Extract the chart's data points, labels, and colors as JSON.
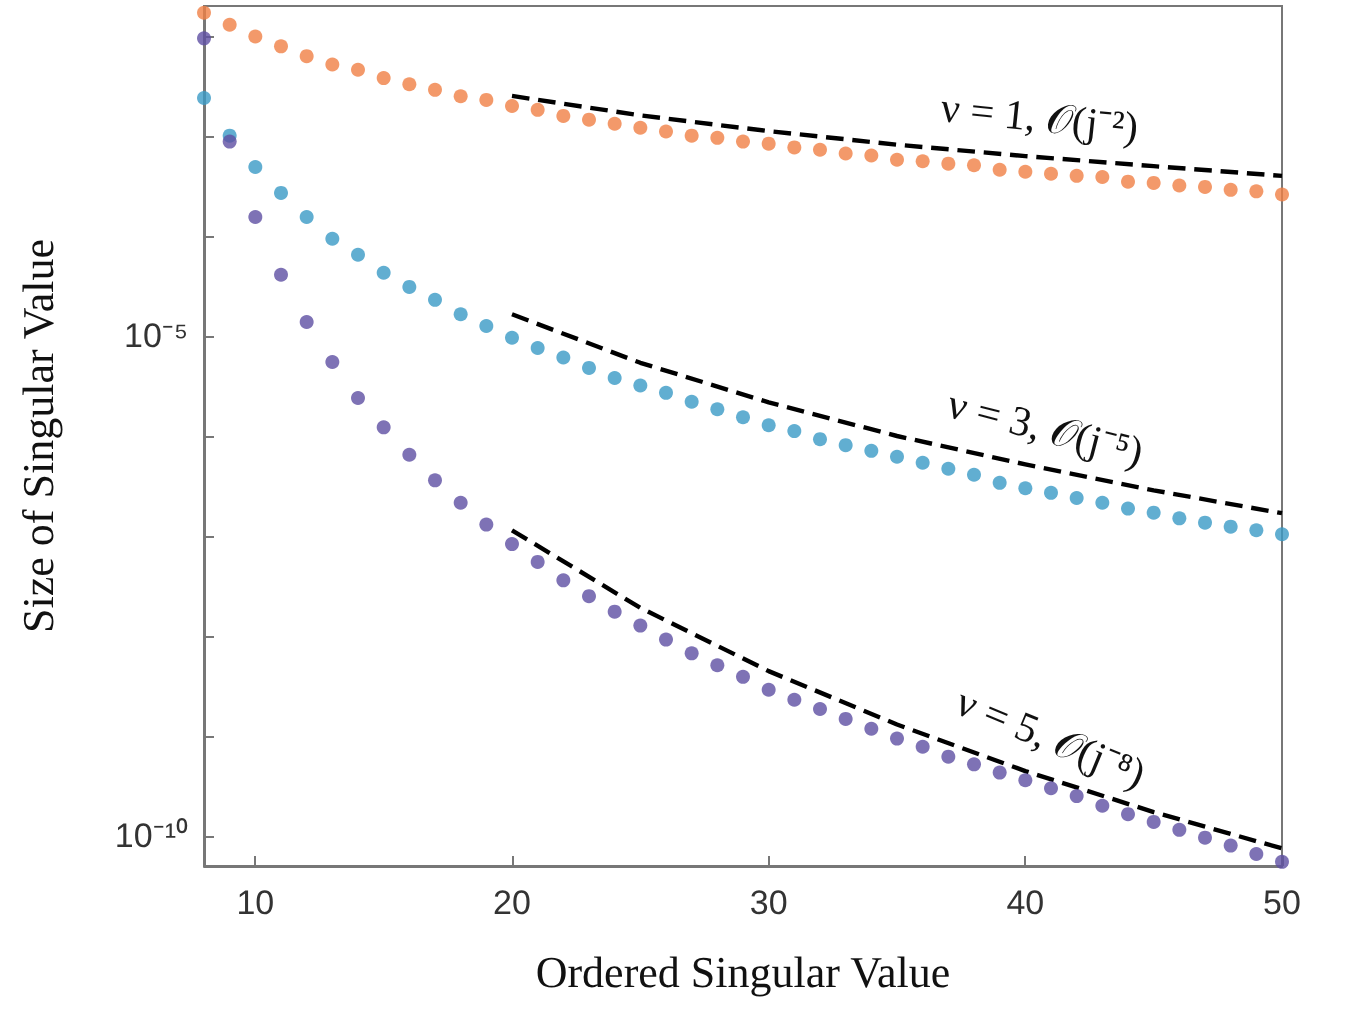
{
  "chart_data": {
    "type": "scatter",
    "xlabel": "Ordered Singular Value",
    "ylabel": "Size of Singular Value",
    "x": [
      8,
      9,
      10,
      11,
      12,
      13,
      14,
      15,
      16,
      17,
      18,
      19,
      20,
      21,
      22,
      23,
      24,
      25,
      26,
      27,
      28,
      29,
      30,
      31,
      32,
      33,
      34,
      35,
      36,
      37,
      38,
      39,
      40,
      41,
      42,
      43,
      44,
      45,
      46,
      47,
      48,
      49,
      50
    ],
    "series": [
      {
        "color": "#f07f45",
        "values": [
          0.0171,
          0.013,
          0.0099,
          0.0079,
          0.0063,
          0.0052,
          0.0046,
          0.0038,
          0.0033,
          0.0029,
          0.0025,
          0.0023,
          0.002,
          0.00183,
          0.00159,
          0.00146,
          0.00133,
          0.00121,
          0.00111,
          0.00101,
          0.00096,
          0.00088,
          0.00084,
          0.00077,
          0.00073,
          0.00067,
          0.00064,
          0.00058,
          0.00056,
          0.00053,
          0.00051,
          0.00046,
          0.00044,
          0.00042,
          0.0004,
          0.00039,
          0.00035,
          0.00034,
          0.00032,
          0.00031,
          0.00029,
          0.00028,
          0.00026
        ]
      },
      {
        "color": "#3a9ac6",
        "values": [
          0.0024,
          0.00101,
          0.00049,
          0.00027,
          0.000155,
          9.4e-05,
          6.5e-05,
          4.3e-05,
          3.1e-05,
          2.3e-05,
          1.65e-05,
          1.26e-05,
          9.6e-06,
          7.6e-06,
          6.1e-06,
          4.8e-06,
          3.8e-06,
          3.2e-06,
          2.7e-06,
          2.2e-06,
          1.85e-06,
          1.54e-06,
          1.28e-06,
          1.12e-06,
          9.3e-07,
          8.1e-07,
          7.1e-07,
          6.2e-07,
          5.4e-07,
          4.7e-07,
          4.1e-07,
          3.4e-07,
          3e-07,
          2.7e-07,
          2.4e-07,
          2.15e-07,
          1.88e-07,
          1.71e-07,
          1.5e-07,
          1.36e-07,
          1.24e-07,
          1.14e-07,
          1.04e-07
        ]
      },
      {
        "color": "#5e4fa2",
        "values": [
          0.0095,
          0.00088,
          0.000155,
          4.1e-05,
          1.38e-05,
          5.5e-06,
          2.4e-06,
          1.22e-06,
          6.5e-07,
          3.6e-07,
          2.15e-07,
          1.3e-07,
          8.3e-08,
          5.5e-08,
          3.6e-08,
          2.5e-08,
          1.75e-08,
          1.27e-08,
          9.2e-09,
          6.7e-09,
          5.1e-09,
          3.9e-09,
          2.9e-09,
          2.3e-09,
          1.86e-09,
          1.48e-09,
          1.18e-09,
          9.4e-10,
          7.8e-10,
          6.2e-10,
          5.2e-10,
          4.3e-10,
          3.6e-10,
          3e-10,
          2.5e-10,
          2e-10,
          1.65e-10,
          1.38e-10,
          1.15e-10,
          9.6e-11,
          8e-11,
          6.6e-11,
          5.5e-11
        ]
      },
      {
        "type": "line",
        "color": "#000000",
        "line_style": "dashed",
        "marker": "none",
        "x": [
          20,
          25,
          30,
          35,
          40,
          45,
          50
        ],
        "values": [
          0.00252,
          0.00161,
          0.00112,
          0.00082,
          0.00063,
          0.0005,
          0.0004
        ]
      },
      {
        "type": "line",
        "color": "#000000",
        "line_style": "dashed",
        "marker": "none",
        "x": [
          20,
          25,
          30,
          35,
          40,
          45,
          50
        ],
        "values": [
          1.65e-05,
          5.4e-06,
          2.17e-06,
          1e-06,
          5.2e-07,
          2.86e-07,
          1.69e-07
        ]
      },
      {
        "type": "line",
        "color": "#000000",
        "line_style": "dashed",
        "marker": "none",
        "x": [
          20,
          25,
          30,
          35,
          40,
          45,
          50
        ],
        "values": [
          1.14e-07,
          1.91e-08,
          4.45e-09,
          1.3e-09,
          4.45e-10,
          1.73e-10,
          7.5e-11
        ]
      }
    ],
    "annotations": [
      "ν = 1, 𝒪(j⁻²)",
      "ν = 3, 𝒪(j⁻⁵)",
      "ν = 5, 𝒪(j⁻⁸)"
    ],
    "log": "y",
    "marker": "circle",
    "grid": false,
    "xlim": [
      8,
      50
    ],
    "xticks": [
      10,
      20,
      30,
      40,
      50
    ],
    "ylim": [
      5e-11,
      0.02
    ],
    "yticks": [
      {
        "value": 1e-10,
        "label": "10⁻¹⁰"
      },
      {
        "value": 1e-09,
        "label": null
      },
      {
        "value": 1e-08,
        "label": null
      },
      {
        "value": 1e-07,
        "label": null
      },
      {
        "value": 1e-06,
        "label": null
      },
      {
        "value": 1e-05,
        "label": "10⁻⁵"
      },
      {
        "value": 0.0001,
        "label": null
      },
      {
        "value": 0.001,
        "label": null
      },
      {
        "value": 0.01,
        "label": null
      }
    ]
  }
}
